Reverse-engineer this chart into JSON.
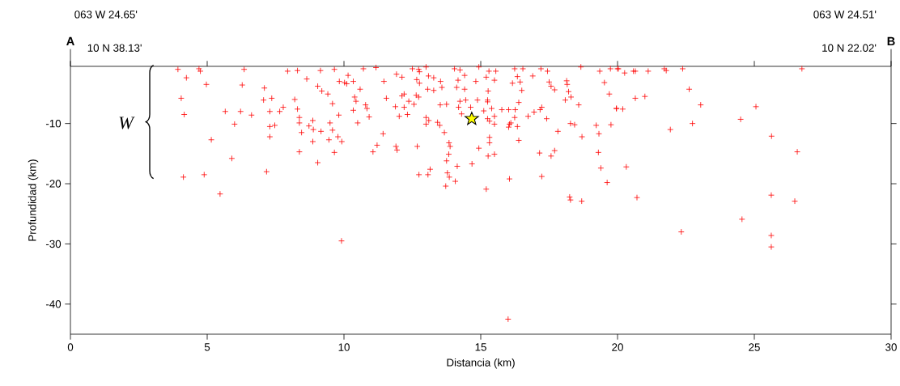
{
  "chart_data": {
    "type": "scatter",
    "xlabel": "Distancia (km)",
    "ylabel": "Profundidad (km)",
    "xlim": [
      0,
      30
    ],
    "xticks": [
      0,
      5,
      10,
      15,
      20,
      25,
      30
    ],
    "ylim": [
      -45,
      -0.5
    ],
    "yticks": [
      -10,
      -20,
      -30,
      -40
    ],
    "annotations": [
      "A",
      "10 N 38.13'",
      "063 W 24.65'",
      "B",
      "10 N 22.02'",
      "063 W 24.51'",
      "W"
    ],
    "series": [
      {
        "color": "#ff0000",
        "marker": "cross",
        "x": [
          3.93,
          4.7,
          4.75,
          6.35,
          7.53,
          7.94,
          8.3,
          9.14,
          9.3,
          9.65,
          4.24,
          4.97,
          6.28,
          7.09,
          8.64,
          9.83,
          9.04,
          9.19,
          9.41,
          4.05,
          7.06,
          7.36,
          8.2,
          9.58,
          4.16,
          5.66,
          6.22,
          6.62,
          7.29,
          7.65,
          7.78,
          8.3,
          8.37,
          8.37,
          8.86,
          8.72,
          8.88,
          9.16,
          9.49,
          9.81,
          9.58,
          6.0,
          7.29,
          7.47,
          7.29,
          8.45,
          9.45,
          9.78,
          9.92,
          5.15,
          8.86,
          8.37,
          9.65,
          9.04,
          5.9,
          4.13,
          4.89,
          7.17,
          5.47,
          10.71,
          11.17,
          11.9,
          12.5,
          12.73,
          12.76,
          13.0,
          14.04,
          14.24,
          14.93,
          15.3,
          15.55,
          15.72,
          16.24,
          16.54,
          17.2,
          17.44,
          17.64,
          18.66,
          19.2,
          19.35,
          19.74,
          20.0,
          10.15,
          10.02,
          10.34,
          10.1,
          10.59,
          11.46,
          11.92,
          12.12,
          12.66,
          12.76,
          13.09,
          13.28,
          13.53,
          13.58,
          13.06,
          13.28,
          14.17,
          14.12,
          14.41,
          14.41,
          14.82,
          15.2,
          15.5,
          15.27,
          16.34,
          16.44,
          16.16,
          16.5,
          16.9,
          17.5,
          17.57,
          17.7,
          18.14,
          18.16,
          18.21,
          18.3,
          18.09,
          19.52,
          19.7,
          19.96,
          18.58,
          10.39,
          10.44,
          10.34,
          10.79,
          10.84,
          10.92,
          10.5,
          11.55,
          11.88,
          12.02,
          12.2,
          12.32,
          12.12,
          12.2,
          12.37,
          12.64,
          12.73,
          12.56,
          13.0,
          13.1,
          13.0,
          13.42,
          13.5,
          13.52,
          13.75,
          13.67,
          14.19,
          14.24,
          14.45,
          14.63,
          14.3,
          14.88,
          15.25,
          15.25,
          15.11,
          15.4,
          15.25,
          15.32,
          15.5,
          15.5,
          15.77,
          16.02,
          16.26,
          16.24,
          16.39,
          16.05,
          16.02,
          16.1,
          16.34,
          16.73,
          16.95,
          17.17,
          17.23,
          17.41,
          17.82,
          18.28,
          18.43,
          18.7,
          19.22,
          19.76,
          19.32,
          11.43,
          11.21,
          11.06,
          11.9,
          11.94,
          12.68,
          13.84,
          13.88,
          13.83,
          13.75,
          14.14,
          14.68,
          14.93,
          15.32,
          15.32,
          15.27,
          15.5,
          16.39,
          17.15,
          17.57,
          17.7,
          19.3,
          19.39,
          19.62,
          17.23,
          16.05,
          15.2,
          13.72,
          13.85,
          13.78,
          14.07,
          13.15,
          13.07,
          12.74,
          20.03,
          20.26,
          20.58,
          20.65,
          20.87,
          21.12,
          21.54,
          21.71,
          21.78,
          21.96,
          22.38,
          22.85,
          23.41,
          23.88,
          26.74,
          22.62,
          20.65,
          21.0,
          19.96,
          20.19,
          23.04,
          25.06,
          24.5,
          22.74,
          21.93,
          25.63,
          26.57,
          20.32,
          9.91,
          18.25,
          18.28,
          18.69,
          20.71,
          22.33,
          24.55,
          25.62,
          25.62,
          25.62,
          26.48,
          16.0
        ],
        "values": [
          -1.0,
          -0.9,
          -1.3,
          -1.0,
          null,
          -1.3,
          -1.2,
          -1.2,
          null,
          -1.0,
          -2.4,
          -3.5,
          -3.6,
          -4.1,
          -2.6,
          -3.0,
          -3.8,
          -4.6,
          -5.1,
          -5.8,
          -6.1,
          -5.8,
          -6.0,
          -6.7,
          -8.5,
          -8.0,
          -8.0,
          -8.6,
          -8.0,
          -8.0,
          -7.3,
          -7.6,
          -9.0,
          -9.9,
          -9.5,
          -10.4,
          -11.0,
          -11.3,
          -9.9,
          -8.6,
          -11.1,
          -10.1,
          -10.5,
          -10.3,
          -12.2,
          -11.5,
          -12.7,
          -12.2,
          -13.0,
          -12.7,
          -13.0,
          -14.7,
          -14.8,
          -16.5,
          -15.8,
          -18.9,
          -18.5,
          -18.0,
          -21.7,
          -0.9,
          -0.7,
          null,
          -0.9,
          -1.0,
          -1.4,
          -0.6,
          -0.9,
          -1.1,
          -0.6,
          -1.3,
          -1.3,
          null,
          -0.9,
          -0.9,
          -0.9,
          -1.3,
          null,
          -0.6,
          null,
          -1.3,
          -0.9,
          -0.9,
          -2.0,
          -3.2,
          -3.0,
          -3.4,
          -4.3,
          -3.0,
          -1.8,
          -2.3,
          -2.7,
          -3.3,
          -2.1,
          -2.4,
          -3.0,
          -4.0,
          -4.3,
          -4.5,
          -2.8,
          -4.0,
          -2.0,
          -4.3,
          -3.0,
          -2.3,
          -2.8,
          -4.6,
          -2.2,
          -3.1,
          -3.3,
          -4.5,
          -2.1,
          -3.1,
          -3.8,
          -4.4,
          -2.9,
          -3.5,
          -4.7,
          -5.6,
          -6.1,
          -3.2,
          -5.1,
          -7.5,
          -6.9,
          -5.6,
          -6.3,
          -7.8,
          -6.9,
          -7.5,
          -8.9,
          -9.9,
          -5.8,
          -7.2,
          -8.8,
          -7.3,
          -8.5,
          -5.4,
          -5.1,
          -6.3,
          -5.3,
          -5.6,
          -6.8,
          -9.0,
          -9.5,
          -10.1,
          -9.8,
          -10.3,
          -6.9,
          -6.8,
          -11.5,
          -7.3,
          -6.3,
          -6.1,
          -7.3,
          -8.4,
          -6.1,
          -6.1,
          -6.4,
          -7.9,
          -7.5,
          -9.2,
          -9.6,
          -8.8,
          -10.1,
          -7.7,
          -7.7,
          -7.7,
          -9.0,
          -6.5,
          -10.1,
          -10.6,
          -9.9,
          -10.5,
          -8.8,
          -8.1,
          -7.7,
          -7.3,
          -9.2,
          -11.3,
          -10.0,
          -10.2,
          -12.2,
          -10.3,
          -10.2,
          -11.7,
          -11.7,
          -13.6,
          -14.7,
          -13.8,
          -14.4,
          -13.8,
          -13.2,
          -13.8,
          -15.1,
          -16.2,
          -17.1,
          -16.7,
          -14.1,
          -12.3,
          -13.2,
          -15.4,
          -15.1,
          -12.8,
          -14.9,
          -15.4,
          -14.5,
          -14.8,
          -17.4,
          -19.8,
          -18.8,
          -19.2,
          -20.9,
          -20.4,
          -18.9,
          -18.2,
          -19.6,
          -17.6,
          -18.5,
          -18.5,
          -0.9,
          -1.6,
          -1.3,
          -1.3,
          null,
          -1.3,
          null,
          -0.9,
          -1.2,
          null,
          -0.9,
          null,
          null,
          null,
          -0.9,
          -4.3,
          -5.8,
          -5.5,
          -7.5,
          -7.6,
          -6.9,
          -7.2,
          -9.3,
          -10.0,
          -11.0,
          -12.1,
          -14.7,
          -17.2,
          -29.5,
          -22.2,
          -22.7,
          -22.9,
          -22.3,
          -28.0,
          -25.9,
          -21.9,
          -28.6,
          -30.5,
          -22.9,
          -42.5
        ]
      },
      {
        "color": "#ffff00",
        "marker": "star",
        "x": [
          14.67
        ],
        "values": [
          -9.2
        ]
      }
    ]
  }
}
